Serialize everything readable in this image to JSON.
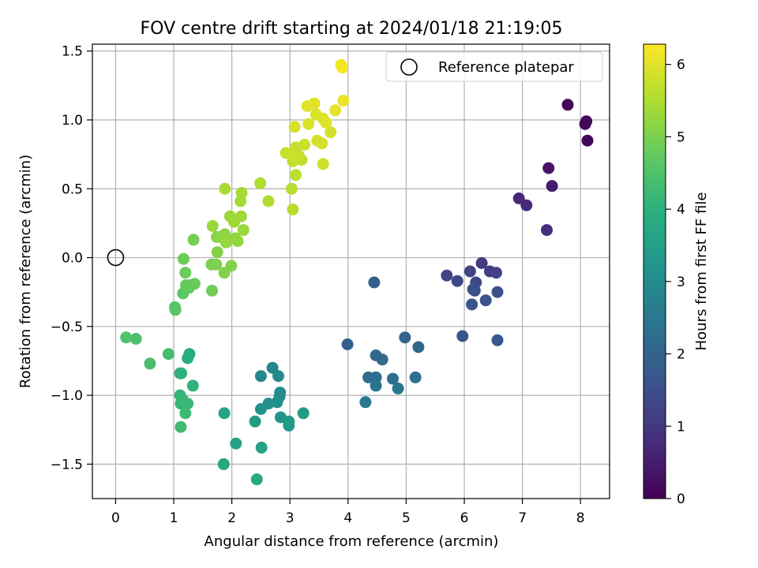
{
  "chart_data": {
    "type": "scatter",
    "title": "FOV centre drift starting at 2024/01/18 21:19:05",
    "xlabel": "Angular distance from reference (arcmin)",
    "ylabel": "Rotation from reference (arcmin)",
    "xlim": [
      -0.4,
      8.5
    ],
    "ylim": [
      -1.75,
      1.55
    ],
    "xticks": [
      "0",
      "1",
      "2",
      "3",
      "4",
      "5",
      "6",
      "7",
      "8"
    ],
    "yticks": [
      "−1.5",
      "−1.0",
      "−0.5",
      "0.0",
      "0.5",
      "1.0",
      "1.5"
    ],
    "grid": true,
    "legend": {
      "position": "top-right",
      "entries": [
        "Reference platepar"
      ]
    },
    "reference_point": {
      "x": 0,
      "y": 0
    },
    "colorbar": {
      "label": "Hours from first FF file",
      "range": [
        0,
        6.28
      ],
      "ticks": [
        "0",
        "1",
        "2",
        "3",
        "4",
        "5",
        "6"
      ],
      "colormap": "viridis"
    },
    "points": [
      [
        7.78,
        1.11,
        0.1
      ],
      [
        8.08,
        0.97,
        0.12
      ],
      [
        8.1,
        0.99,
        0.13
      ],
      [
        8.12,
        0.85,
        0.15
      ],
      [
        7.45,
        0.65,
        0.35
      ],
      [
        7.51,
        0.52,
        0.5
      ],
      [
        6.94,
        0.43,
        0.7
      ],
      [
        7.07,
        0.38,
        0.75
      ],
      [
        7.42,
        0.2,
        0.85
      ],
      [
        6.3,
        -0.04,
        1.1
      ],
      [
        6.44,
        -0.1,
        1.15
      ],
      [
        6.55,
        -0.11,
        1.2
      ],
      [
        6.1,
        -0.1,
        1.25
      ],
      [
        5.7,
        -0.13,
        1.3
      ],
      [
        5.88,
        -0.17,
        1.35
      ],
      [
        6.2,
        -0.18,
        1.4
      ],
      [
        6.18,
        -0.24,
        1.45
      ],
      [
        6.15,
        -0.23,
        1.5
      ],
      [
        6.57,
        -0.25,
        1.55
      ],
      [
        6.37,
        -0.31,
        1.6
      ],
      [
        6.13,
        -0.34,
        1.65
      ],
      [
        5.97,
        -0.57,
        1.7
      ],
      [
        6.57,
        -0.6,
        1.75
      ],
      [
        4.45,
        -0.18,
        1.85
      ],
      [
        3.99,
        -0.63,
        1.95
      ],
      [
        4.98,
        -0.58,
        2.0
      ],
      [
        5.21,
        -0.65,
        2.05
      ],
      [
        4.48,
        -0.71,
        2.1
      ],
      [
        4.59,
        -0.74,
        2.15
      ],
      [
        4.35,
        -0.87,
        2.2
      ],
      [
        4.48,
        -0.87,
        2.25
      ],
      [
        4.77,
        -0.88,
        2.3
      ],
      [
        5.16,
        -0.87,
        2.35
      ],
      [
        4.48,
        -0.93,
        2.4
      ],
      [
        4.86,
        -0.95,
        2.45
      ],
      [
        4.3,
        -1.05,
        2.5
      ],
      [
        2.5,
        -0.86,
        2.85
      ],
      [
        2.7,
        -0.8,
        2.9
      ],
      [
        2.8,
        -0.86,
        2.95
      ],
      [
        2.83,
        -0.98,
        3.0
      ],
      [
        2.82,
        -1.01,
        3.05
      ],
      [
        2.78,
        -1.05,
        3.1
      ],
      [
        2.63,
        -1.06,
        3.15
      ],
      [
        2.5,
        -1.1,
        3.2
      ],
      [
        2.84,
        -1.16,
        3.25
      ],
      [
        2.98,
        -1.19,
        3.3
      ],
      [
        2.98,
        -1.22,
        3.35
      ],
      [
        3.23,
        -1.13,
        3.4
      ],
      [
        2.4,
        -1.19,
        3.45
      ],
      [
        2.07,
        -1.35,
        3.55
      ],
      [
        2.51,
        -1.38,
        3.6
      ],
      [
        1.87,
        -1.13,
        3.65
      ],
      [
        1.86,
        -1.5,
        3.7
      ],
      [
        2.43,
        -1.61,
        3.75
      ],
      [
        1.27,
        -0.7,
        3.85
      ],
      [
        1.24,
        -0.73,
        3.9
      ],
      [
        1.11,
        -0.84,
        3.95
      ],
      [
        1.13,
        -0.84,
        4.0
      ],
      [
        1.33,
        -0.93,
        4.05
      ],
      [
        1.11,
        -1.0,
        4.1
      ],
      [
        1.15,
        -1.03,
        4.12
      ],
      [
        1.12,
        -1.06,
        4.15
      ],
      [
        1.24,
        -1.06,
        4.2
      ],
      [
        1.2,
        -1.13,
        4.25
      ],
      [
        1.12,
        -1.23,
        4.3
      ],
      [
        0.91,
        -0.7,
        4.35
      ],
      [
        0.59,
        -0.77,
        4.4
      ],
      [
        0.35,
        -0.59,
        4.45
      ],
      [
        0.18,
        -0.58,
        4.5
      ],
      [
        1.02,
        -0.36,
        4.6
      ],
      [
        1.03,
        -0.38,
        4.62
      ],
      [
        1.16,
        -0.26,
        4.68
      ],
      [
        1.26,
        -0.22,
        4.72
      ],
      [
        1.21,
        -0.2,
        4.75
      ],
      [
        1.28,
        -0.2,
        4.77
      ],
      [
        1.36,
        -0.19,
        4.8
      ],
      [
        1.2,
        -0.11,
        4.82
      ],
      [
        1.17,
        -0.01,
        4.85
      ],
      [
        1.66,
        -0.24,
        4.88
      ],
      [
        1.34,
        0.13,
        4.95
      ],
      [
        1.65,
        -0.05,
        5.0
      ],
      [
        1.73,
        -0.05,
        5.02
      ],
      [
        1.87,
        -0.11,
        5.05
      ],
      [
        1.99,
        -0.06,
        5.08
      ],
      [
        1.75,
        0.04,
        5.1
      ],
      [
        1.74,
        0.15,
        5.12
      ],
      [
        1.8,
        0.15,
        5.15
      ],
      [
        1.88,
        0.17,
        5.17
      ],
      [
        1.92,
        0.13,
        5.2
      ],
      [
        2.06,
        0.14,
        5.22
      ],
      [
        2.1,
        0.12,
        5.25
      ],
      [
        1.9,
        0.11,
        5.27
      ],
      [
        2.2,
        0.2,
        5.3
      ],
      [
        1.67,
        0.23,
        5.3
      ],
      [
        1.97,
        0.3,
        5.32
      ],
      [
        2.04,
        0.26,
        5.35
      ],
      [
        2.16,
        0.3,
        5.37
      ],
      [
        2.15,
        0.41,
        5.4
      ],
      [
        2.17,
        0.47,
        5.42
      ],
      [
        1.88,
        0.5,
        5.45
      ],
      [
        2.49,
        0.54,
        5.5
      ],
      [
        2.63,
        0.41,
        5.52
      ],
      [
        3.03,
        0.5,
        5.58
      ],
      [
        3.05,
        0.35,
        5.6
      ],
      [
        3.1,
        0.6,
        5.62
      ],
      [
        3.05,
        0.7,
        5.65
      ],
      [
        3.2,
        0.71,
        5.67
      ],
      [
        3.15,
        0.74,
        5.7
      ],
      [
        3.1,
        0.8,
        5.72
      ],
      [
        2.93,
        0.76,
        5.75
      ],
      [
        3.07,
        0.73,
        5.77
      ],
      [
        3.25,
        0.82,
        5.8
      ],
      [
        3.57,
        0.68,
        5.82
      ],
      [
        3.47,
        0.85,
        5.85
      ],
      [
        3.55,
        0.83,
        5.87
      ],
      [
        3.7,
        0.91,
        5.88
      ],
      [
        3.08,
        0.95,
        5.9
      ],
      [
        3.32,
        0.97,
        5.92
      ],
      [
        3.45,
        1.04,
        5.93
      ],
      [
        3.57,
        1.01,
        5.95
      ],
      [
        3.62,
        0.98,
        5.97
      ],
      [
        3.3,
        1.1,
        5.98
      ],
      [
        3.42,
        1.12,
        6.0
      ],
      [
        3.78,
        1.07,
        6.03
      ],
      [
        3.92,
        1.14,
        6.08
      ],
      [
        3.88,
        1.4,
        6.18
      ],
      [
        3.9,
        1.38,
        6.2
      ]
    ]
  }
}
